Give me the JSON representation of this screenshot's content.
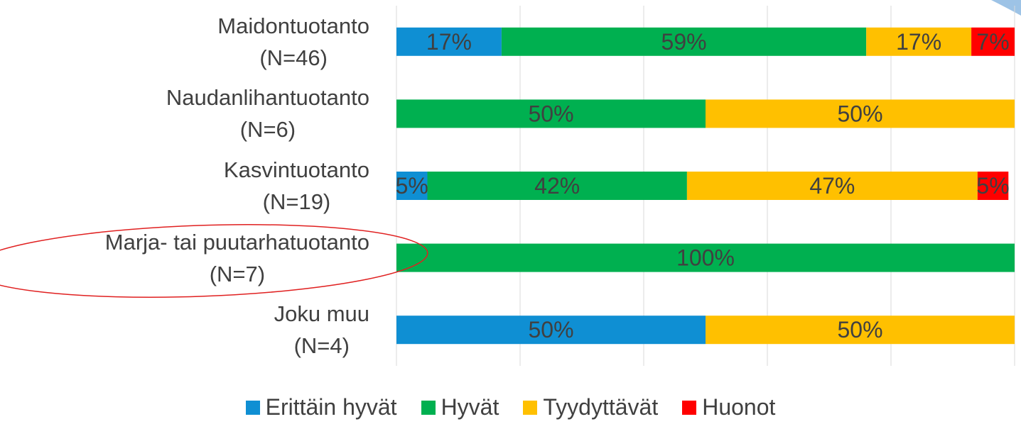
{
  "chart_data": {
    "type": "stacked_bar_horizontal",
    "categories": [
      "Maidontuotanto\n(N=46)",
      "Naudanlihantuotanto\n(N=6)",
      "Kasvintuotanto\n(N=19)",
      "Marja- tai puutarhatuotanto\n(N=7)",
      "Joku muu\n(N=4)"
    ],
    "series": [
      {
        "name": "Erittäin hyvät",
        "color": "#0f8fd3",
        "values": [
          17,
          null,
          5,
          null,
          50
        ],
        "value_labels": [
          "17%",
          null,
          "5%",
          null,
          "50%"
        ]
      },
      {
        "name": "Hyvät",
        "color": "#00b050",
        "values": [
          59,
          50,
          42,
          100,
          null
        ],
        "value_labels": [
          "59%",
          "50%",
          "42%",
          "100%",
          null
        ]
      },
      {
        "name": "Tyydyttävät",
        "color": "#ffc000",
        "values": [
          17,
          50,
          47,
          null,
          50
        ],
        "value_labels": [
          "17%",
          "50%",
          "47%",
          null,
          "50%"
        ]
      },
      {
        "name": "Huonot",
        "color": "#ff0000",
        "values": [
          7,
          null,
          5,
          null,
          null
        ],
        "value_labels": [
          "7%",
          null,
          "5%",
          null,
          null
        ]
      }
    ],
    "xlim": [
      0,
      100
    ],
    "xticks": [
      0,
      20,
      40,
      60,
      80,
      100
    ],
    "grid": true,
    "legend": "bottom"
  }
}
